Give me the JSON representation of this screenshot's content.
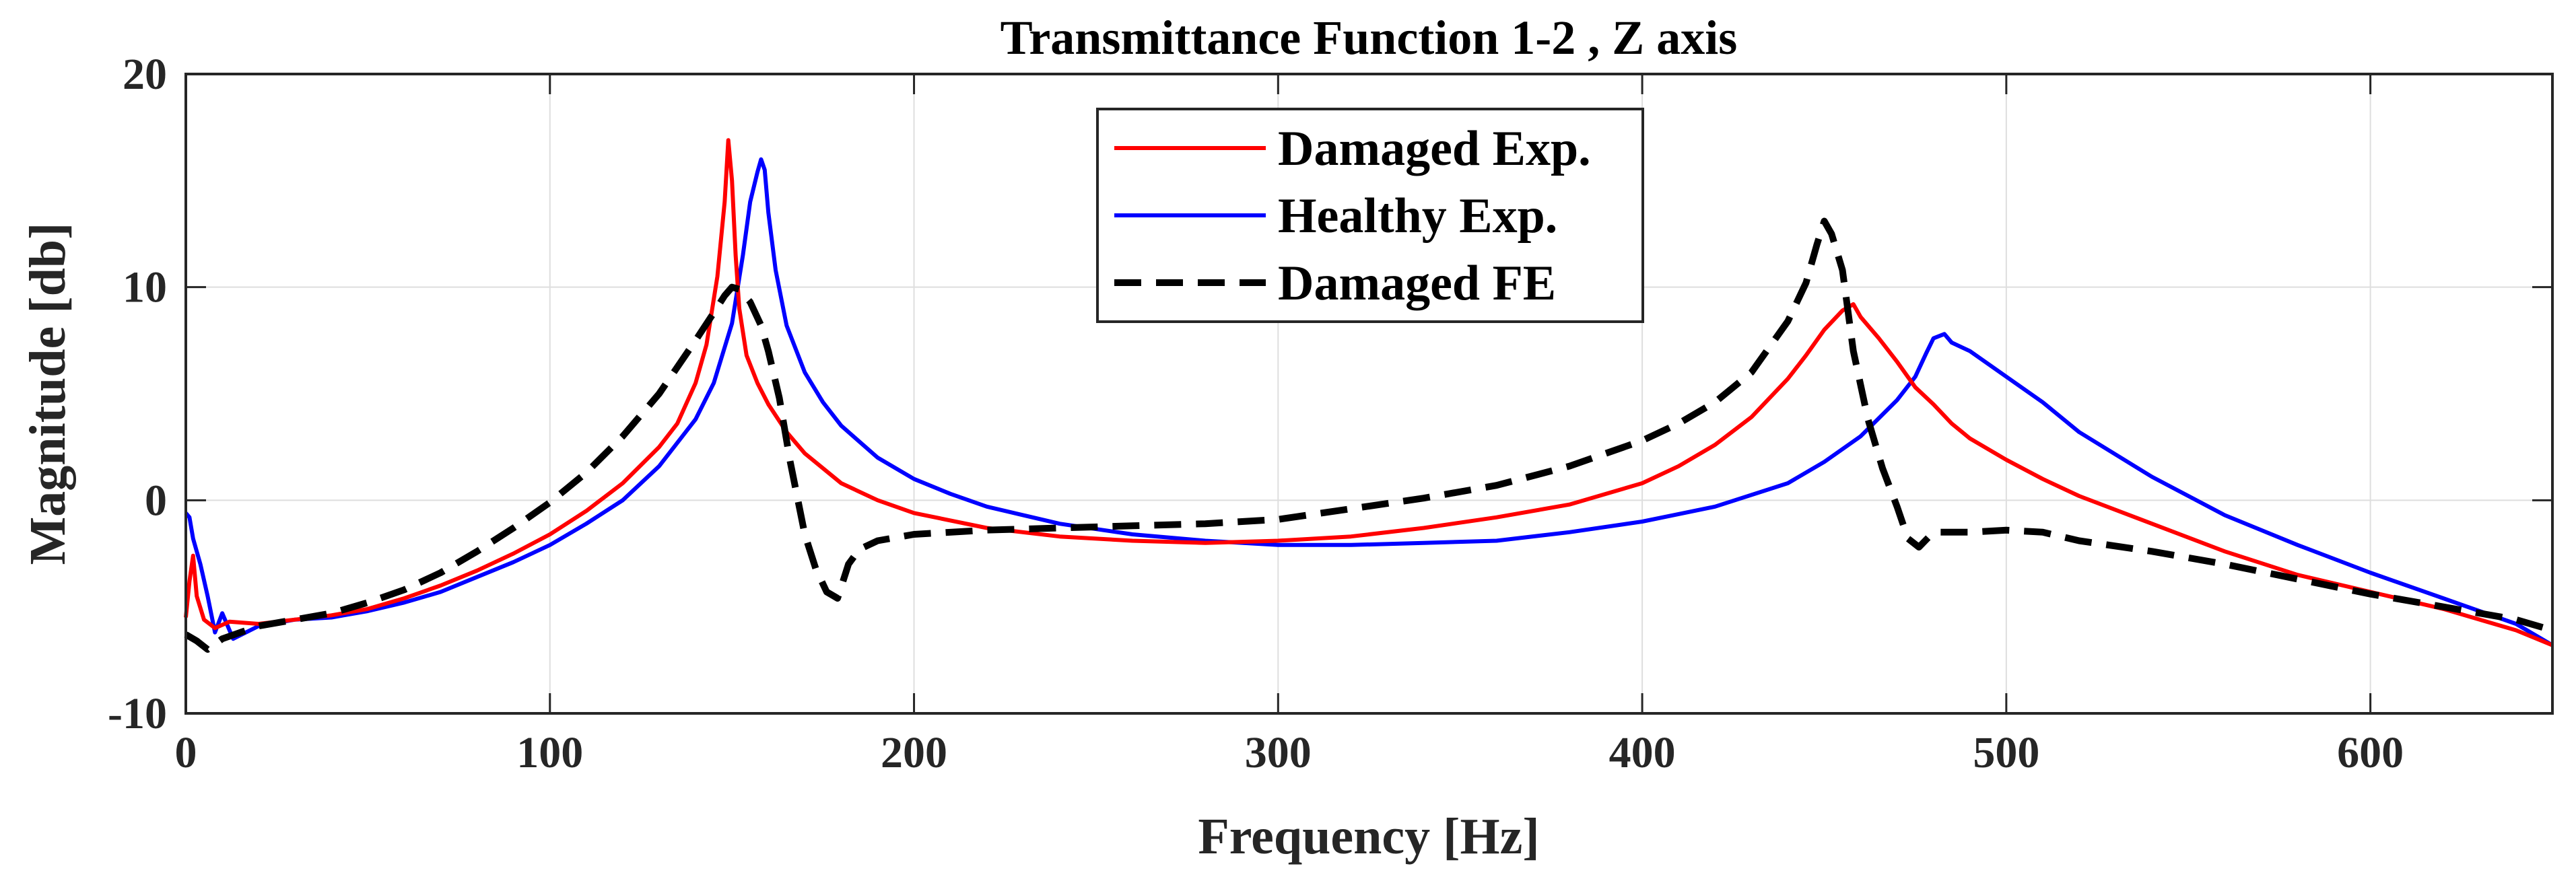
{
  "chart_data": {
    "type": "line",
    "title": "Transmittance Function 1-2 , Z axis",
    "xlabel": "Frequency [Hz]",
    "ylabel": "Magnitude [db]",
    "xlim": [
      0,
      650
    ],
    "ylim": [
      -10,
      20
    ],
    "xticks": [
      0,
      100,
      200,
      300,
      400,
      500,
      600
    ],
    "yticks": [
      -10,
      0,
      10,
      20
    ],
    "xtick_labels": [
      "0",
      "100",
      "200",
      "300",
      "400",
      "500",
      "600"
    ],
    "ytick_labels": [
      "-10",
      "0",
      "10",
      "20"
    ],
    "grid": true,
    "legend_position": "top-center",
    "series": [
      {
        "name": "Damaged Exp.",
        "color": "#ff0000",
        "style": "solid",
        "x": [
          0,
          1,
          2,
          3,
          5,
          8,
          12,
          20,
          30,
          40,
          50,
          60,
          70,
          80,
          90,
          100,
          110,
          120,
          130,
          135,
          140,
          143,
          146,
          148,
          149,
          150,
          151,
          152,
          154,
          157,
          160,
          165,
          170,
          180,
          190,
          200,
          220,
          240,
          260,
          280,
          300,
          320,
          340,
          360,
          380,
          400,
          410,
          420,
          430,
          440,
          445,
          450,
          455,
          458,
          460,
          465,
          470,
          475,
          480,
          485,
          490,
          500,
          510,
          520,
          540,
          560,
          580,
          600,
          620,
          640,
          650
        ],
        "y": [
          -5.5,
          -3.8,
          -2.6,
          -4.5,
          -5.6,
          -6.0,
          -5.7,
          -5.8,
          -5.6,
          -5.4,
          -5.1,
          -4.6,
          -4.0,
          -3.3,
          -2.5,
          -1.6,
          -0.5,
          0.8,
          2.5,
          3.6,
          5.5,
          7.3,
          10.5,
          14.0,
          16.9,
          15.0,
          11.5,
          9.0,
          6.8,
          5.5,
          4.5,
          3.2,
          2.2,
          0.8,
          0.0,
          -0.6,
          -1.3,
          -1.7,
          -1.9,
          -2.0,
          -1.9,
          -1.7,
          -1.3,
          -0.8,
          -0.2,
          0.8,
          1.6,
          2.6,
          3.9,
          5.7,
          6.8,
          8.0,
          8.9,
          9.2,
          8.6,
          7.6,
          6.5,
          5.3,
          4.5,
          3.6,
          2.9,
          1.9,
          1.0,
          0.2,
          -1.1,
          -2.4,
          -3.5,
          -4.3,
          -5.1,
          -6.1,
          -6.8
        ]
      },
      {
        "name": "Healthy Exp.",
        "color": "#0000ff",
        "style": "solid",
        "x": [
          0,
          1,
          2,
          4,
          6,
          8,
          10,
          13,
          20,
          30,
          40,
          50,
          60,
          70,
          80,
          90,
          100,
          110,
          120,
          130,
          140,
          145,
          150,
          153,
          155,
          157,
          158,
          159,
          160,
          162,
          165,
          170,
          175,
          180,
          190,
          200,
          210,
          220,
          240,
          260,
          280,
          300,
          320,
          340,
          360,
          380,
          400,
          420,
          440,
          450,
          460,
          470,
          475,
          478,
          480,
          483,
          485,
          490,
          500,
          510,
          520,
          540,
          560,
          580,
          600,
          620,
          640,
          650
        ],
        "y": [
          -0.6,
          -0.8,
          -1.8,
          -3.0,
          -4.5,
          -6.2,
          -5.3,
          -6.5,
          -5.9,
          -5.6,
          -5.5,
          -5.2,
          -4.8,
          -4.3,
          -3.6,
          -2.9,
          -2.1,
          -1.1,
          0.0,
          1.6,
          3.8,
          5.5,
          8.3,
          11.5,
          14.0,
          15.4,
          16.0,
          15.5,
          13.5,
          10.8,
          8.2,
          6.0,
          4.6,
          3.5,
          2.0,
          1.0,
          0.3,
          -0.3,
          -1.1,
          -1.6,
          -1.9,
          -2.1,
          -2.1,
          -2.0,
          -1.9,
          -1.5,
          -1.0,
          -0.3,
          0.8,
          1.8,
          3.0,
          4.7,
          5.8,
          6.9,
          7.6,
          7.8,
          7.4,
          7.0,
          5.8,
          4.6,
          3.2,
          1.1,
          -0.7,
          -2.1,
          -3.4,
          -4.6,
          -5.8,
          -6.8
        ]
      },
      {
        "name": "Damaged FE",
        "color": "#000000",
        "style": "dashed",
        "x": [
          0,
          3,
          6,
          10,
          15,
          20,
          30,
          40,
          50,
          60,
          70,
          80,
          90,
          100,
          110,
          120,
          130,
          140,
          145,
          148,
          150,
          152,
          155,
          158,
          160,
          163,
          166,
          170,
          173,
          176,
          179,
          182,
          185,
          190,
          200,
          220,
          240,
          260,
          280,
          300,
          320,
          340,
          360,
          380,
          400,
          410,
          420,
          430,
          440,
          445,
          448,
          450,
          452,
          455,
          458,
          462,
          466,
          470,
          473,
          476,
          480,
          490,
          500,
          510,
          520,
          540,
          560,
          580,
          600,
          620,
          640,
          650
        ],
        "y": [
          -6.3,
          -6.6,
          -7.0,
          -6.5,
          -6.2,
          -5.9,
          -5.6,
          -5.3,
          -4.8,
          -4.2,
          -3.4,
          -2.4,
          -1.3,
          -0.1,
          1.3,
          3.0,
          5.0,
          7.5,
          8.8,
          9.6,
          10.0,
          9.9,
          9.3,
          8.2,
          7.0,
          4.8,
          1.8,
          -1.6,
          -3.2,
          -4.3,
          -4.6,
          -3.0,
          -2.3,
          -1.9,
          -1.6,
          -1.4,
          -1.3,
          -1.2,
          -1.1,
          -0.9,
          -0.4,
          0.1,
          0.7,
          1.6,
          2.8,
          3.6,
          4.6,
          6.0,
          8.4,
          10.2,
          12.0,
          13.1,
          12.5,
          10.8,
          7.0,
          3.8,
          1.5,
          -0.3,
          -1.8,
          -2.2,
          -1.5,
          -1.5,
          -1.4,
          -1.5,
          -1.9,
          -2.4,
          -3.0,
          -3.7,
          -4.4,
          -5.0,
          -5.6,
          -6.1
        ]
      }
    ]
  }
}
